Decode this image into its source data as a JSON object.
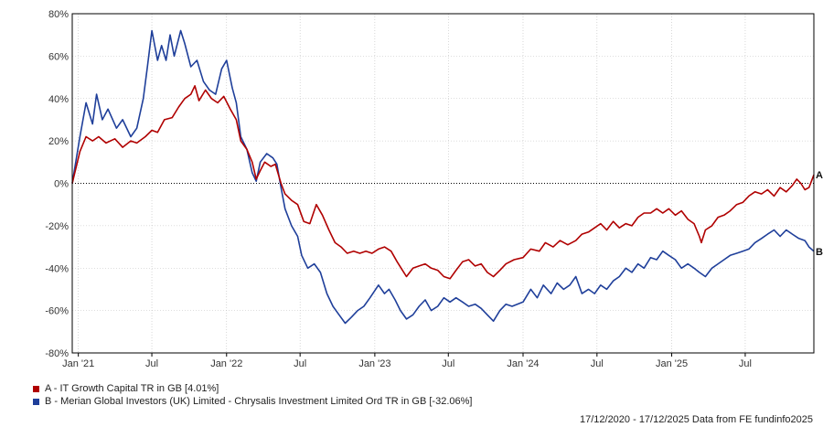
{
  "chart_data": {
    "type": "line",
    "title": "",
    "xlabel": "",
    "ylabel": "",
    "ylim": [
      -80,
      80
    ],
    "y_ticks": [
      "80%",
      "60%",
      "40%",
      "20%",
      "0%",
      "-20%",
      "-40%",
      "-60%",
      "-80%"
    ],
    "x_range": [
      "2020-12-17",
      "2025-12-17"
    ],
    "x_ticks": [
      {
        "date": "2021-01-01",
        "label": "Jan '21"
      },
      {
        "date": "2021-07-01",
        "label": "Jul"
      },
      {
        "date": "2022-01-01",
        "label": "Jan '22"
      },
      {
        "date": "2022-07-01",
        "label": "Jul"
      },
      {
        "date": "2023-01-01",
        "label": "Jan '23"
      },
      {
        "date": "2023-07-01",
        "label": "Jul"
      },
      {
        "date": "2024-01-01",
        "label": "Jan '24"
      },
      {
        "date": "2024-07-01",
        "label": "Jul"
      },
      {
        "date": "2025-01-01",
        "label": "Jan '25"
      },
      {
        "date": "2025-07-01",
        "label": "Jul"
      }
    ],
    "grid": true,
    "zero_line": true,
    "colors": {
      "A": "#b00000",
      "B": "#1f3f9a"
    },
    "series": [
      {
        "name": "A - IT Growth Capital TR in GB [4.01%]",
        "end_label": "A",
        "color": "#b00000",
        "points": [
          [
            "2020-12-17",
            0
          ],
          [
            "2021-01-05",
            15
          ],
          [
            "2021-01-20",
            22
          ],
          [
            "2021-02-05",
            20
          ],
          [
            "2021-02-20",
            22
          ],
          [
            "2021-03-10",
            19
          ],
          [
            "2021-04-01",
            21
          ],
          [
            "2021-04-20",
            17
          ],
          [
            "2021-05-10",
            20
          ],
          [
            "2021-05-25",
            19
          ],
          [
            "2021-06-15",
            22
          ],
          [
            "2021-07-01",
            25
          ],
          [
            "2021-07-15",
            24
          ],
          [
            "2021-08-01",
            30
          ],
          [
            "2021-08-20",
            31
          ],
          [
            "2021-09-05",
            36
          ],
          [
            "2021-09-20",
            40
          ],
          [
            "2021-10-05",
            42
          ],
          [
            "2021-10-15",
            46
          ],
          [
            "2021-10-25",
            39
          ],
          [
            "2021-11-10",
            44
          ],
          [
            "2021-11-25",
            40
          ],
          [
            "2021-12-10",
            38
          ],
          [
            "2021-12-25",
            41
          ],
          [
            "2022-01-10",
            35
          ],
          [
            "2022-01-25",
            30
          ],
          [
            "2022-02-05",
            20
          ],
          [
            "2022-02-20",
            16
          ],
          [
            "2022-03-05",
            10
          ],
          [
            "2022-03-15",
            2
          ],
          [
            "2022-03-25",
            6
          ],
          [
            "2022-04-05",
            10
          ],
          [
            "2022-04-20",
            8
          ],
          [
            "2022-05-01",
            9
          ],
          [
            "2022-05-15",
            0
          ],
          [
            "2022-05-25",
            -5
          ],
          [
            "2022-06-10",
            -8
          ],
          [
            "2022-06-25",
            -10
          ],
          [
            "2022-07-10",
            -18
          ],
          [
            "2022-07-25",
            -19
          ],
          [
            "2022-08-10",
            -10
          ],
          [
            "2022-08-25",
            -15
          ],
          [
            "2022-09-10",
            -22
          ],
          [
            "2022-09-25",
            -28
          ],
          [
            "2022-10-10",
            -30
          ],
          [
            "2022-10-25",
            -33
          ],
          [
            "2022-11-10",
            -32
          ],
          [
            "2022-11-25",
            -33
          ],
          [
            "2022-12-10",
            -32
          ],
          [
            "2022-12-25",
            -33
          ],
          [
            "2023-01-10",
            -31
          ],
          [
            "2023-01-25",
            -30
          ],
          [
            "2023-02-10",
            -32
          ],
          [
            "2023-02-25",
            -37
          ],
          [
            "2023-03-10",
            -41
          ],
          [
            "2023-03-20",
            -44
          ],
          [
            "2023-04-05",
            -40
          ],
          [
            "2023-04-20",
            -39
          ],
          [
            "2023-05-05",
            -38
          ],
          [
            "2023-05-20",
            -40
          ],
          [
            "2023-06-05",
            -41
          ],
          [
            "2023-06-20",
            -44
          ],
          [
            "2023-07-05",
            -45
          ],
          [
            "2023-07-20",
            -41
          ],
          [
            "2023-08-05",
            -37
          ],
          [
            "2023-08-20",
            -36
          ],
          [
            "2023-09-05",
            -39
          ],
          [
            "2023-09-20",
            -38
          ],
          [
            "2023-10-05",
            -42
          ],
          [
            "2023-10-20",
            -44
          ],
          [
            "2023-11-05",
            -41
          ],
          [
            "2023-11-20",
            -38
          ],
          [
            "2023-12-10",
            -36
          ],
          [
            "2024-01-01",
            -35
          ],
          [
            "2024-01-20",
            -31
          ],
          [
            "2024-02-10",
            -32
          ],
          [
            "2024-02-25",
            -28
          ],
          [
            "2024-03-15",
            -30
          ],
          [
            "2024-04-01",
            -27
          ],
          [
            "2024-04-20",
            -29
          ],
          [
            "2024-05-10",
            -27
          ],
          [
            "2024-05-25",
            -24
          ],
          [
            "2024-06-10",
            -23
          ],
          [
            "2024-06-25",
            -21
          ],
          [
            "2024-07-10",
            -19
          ],
          [
            "2024-07-25",
            -22
          ],
          [
            "2024-08-10",
            -18
          ],
          [
            "2024-08-25",
            -21
          ],
          [
            "2024-09-10",
            -19
          ],
          [
            "2024-09-25",
            -20
          ],
          [
            "2024-10-10",
            -16
          ],
          [
            "2024-10-25",
            -14
          ],
          [
            "2024-11-10",
            -14
          ],
          [
            "2024-11-25",
            -12
          ],
          [
            "2024-12-10",
            -14
          ],
          [
            "2024-12-25",
            -12
          ],
          [
            "2025-01-10",
            -15
          ],
          [
            "2025-01-25",
            -13
          ],
          [
            "2025-02-10",
            -17
          ],
          [
            "2025-02-25",
            -19
          ],
          [
            "2025-03-10",
            -25
          ],
          [
            "2025-03-15",
            -28
          ],
          [
            "2025-03-25",
            -22
          ],
          [
            "2025-04-10",
            -20
          ],
          [
            "2025-04-25",
            -16
          ],
          [
            "2025-05-10",
            -15
          ],
          [
            "2025-05-25",
            -13
          ],
          [
            "2025-06-10",
            -10
          ],
          [
            "2025-06-25",
            -9
          ],
          [
            "2025-07-10",
            -6
          ],
          [
            "2025-07-25",
            -4
          ],
          [
            "2025-08-10",
            -5
          ],
          [
            "2025-08-25",
            -3
          ],
          [
            "2025-09-10",
            -6
          ],
          [
            "2025-09-25",
            -2
          ],
          [
            "2025-10-10",
            -4
          ],
          [
            "2025-10-25",
            -1
          ],
          [
            "2025-11-05",
            2
          ],
          [
            "2025-11-15",
            0
          ],
          [
            "2025-11-25",
            -3
          ],
          [
            "2025-12-05",
            -2
          ],
          [
            "2025-12-17",
            4.01
          ]
        ]
      },
      {
        "name": "B - Merian Global Investors (UK) Limited - Chrysalis Investment Limited Ord TR in GB [-32.06%]",
        "end_label": "B",
        "color": "#1f3f9a",
        "points": [
          [
            "2020-12-17",
            0
          ],
          [
            "2021-01-05",
            22
          ],
          [
            "2021-01-20",
            38
          ],
          [
            "2021-02-05",
            28
          ],
          [
            "2021-02-15",
            42
          ],
          [
            "2021-03-01",
            30
          ],
          [
            "2021-03-15",
            35
          ],
          [
            "2021-04-05",
            26
          ],
          [
            "2021-04-20",
            30
          ],
          [
            "2021-05-10",
            22
          ],
          [
            "2021-05-25",
            26
          ],
          [
            "2021-06-10",
            40
          ],
          [
            "2021-06-20",
            55
          ],
          [
            "2021-07-01",
            72
          ],
          [
            "2021-07-15",
            58
          ],
          [
            "2021-07-25",
            65
          ],
          [
            "2021-08-05",
            58
          ],
          [
            "2021-08-15",
            70
          ],
          [
            "2021-08-25",
            60
          ],
          [
            "2021-09-10",
            72
          ],
          [
            "2021-09-20",
            66
          ],
          [
            "2021-10-05",
            55
          ],
          [
            "2021-10-20",
            58
          ],
          [
            "2021-11-05",
            48
          ],
          [
            "2021-11-20",
            44
          ],
          [
            "2021-12-05",
            42
          ],
          [
            "2021-12-20",
            54
          ],
          [
            "2022-01-01",
            58
          ],
          [
            "2022-01-15",
            45
          ],
          [
            "2022-01-25",
            38
          ],
          [
            "2022-02-05",
            22
          ],
          [
            "2022-02-20",
            16
          ],
          [
            "2022-03-05",
            5
          ],
          [
            "2022-03-15",
            1
          ],
          [
            "2022-03-25",
            10
          ],
          [
            "2022-04-10",
            14
          ],
          [
            "2022-04-25",
            12
          ],
          [
            "2022-05-05",
            9
          ],
          [
            "2022-05-15",
            -2
          ],
          [
            "2022-05-25",
            -12
          ],
          [
            "2022-06-10",
            -20
          ],
          [
            "2022-06-25",
            -25
          ],
          [
            "2022-07-05",
            -34
          ],
          [
            "2022-07-20",
            -40
          ],
          [
            "2022-08-05",
            -38
          ],
          [
            "2022-08-20",
            -42
          ],
          [
            "2022-09-05",
            -52
          ],
          [
            "2022-09-20",
            -58
          ],
          [
            "2022-10-05",
            -62
          ],
          [
            "2022-10-20",
            -66
          ],
          [
            "2022-11-05",
            -63
          ],
          [
            "2022-11-20",
            -60
          ],
          [
            "2022-12-05",
            -58
          ],
          [
            "2022-12-20",
            -54
          ],
          [
            "2023-01-10",
            -48
          ],
          [
            "2023-01-25",
            -52
          ],
          [
            "2023-02-05",
            -50
          ],
          [
            "2023-02-20",
            -55
          ],
          [
            "2023-03-05",
            -60
          ],
          [
            "2023-03-20",
            -64
          ],
          [
            "2023-04-05",
            -62
          ],
          [
            "2023-04-20",
            -58
          ],
          [
            "2023-05-05",
            -55
          ],
          [
            "2023-05-20",
            -60
          ],
          [
            "2023-06-05",
            -58
          ],
          [
            "2023-06-20",
            -54
          ],
          [
            "2023-07-05",
            -56
          ],
          [
            "2023-07-20",
            -54
          ],
          [
            "2023-08-05",
            -56
          ],
          [
            "2023-08-20",
            -58
          ],
          [
            "2023-09-05",
            -57
          ],
          [
            "2023-09-20",
            -59
          ],
          [
            "2023-10-05",
            -62
          ],
          [
            "2023-10-20",
            -65
          ],
          [
            "2023-11-05",
            -60
          ],
          [
            "2023-11-20",
            -57
          ],
          [
            "2023-12-05",
            -58
          ],
          [
            "2024-01-01",
            -56
          ],
          [
            "2024-01-20",
            -50
          ],
          [
            "2024-02-05",
            -54
          ],
          [
            "2024-02-20",
            -48
          ],
          [
            "2024-03-10",
            -52
          ],
          [
            "2024-03-25",
            -47
          ],
          [
            "2024-04-10",
            -50
          ],
          [
            "2024-04-25",
            -48
          ],
          [
            "2024-05-10",
            -44
          ],
          [
            "2024-05-25",
            -52
          ],
          [
            "2024-06-10",
            -50
          ],
          [
            "2024-06-25",
            -52
          ],
          [
            "2024-07-10",
            -48
          ],
          [
            "2024-07-25",
            -50
          ],
          [
            "2024-08-10",
            -46
          ],
          [
            "2024-08-25",
            -44
          ],
          [
            "2024-09-10",
            -40
          ],
          [
            "2024-09-25",
            -42
          ],
          [
            "2024-10-10",
            -38
          ],
          [
            "2024-10-25",
            -40
          ],
          [
            "2024-11-10",
            -35
          ],
          [
            "2024-11-25",
            -36
          ],
          [
            "2024-12-10",
            -32
          ],
          [
            "2024-12-25",
            -34
          ],
          [
            "2025-01-10",
            -36
          ],
          [
            "2025-01-25",
            -40
          ],
          [
            "2025-02-10",
            -38
          ],
          [
            "2025-02-25",
            -40
          ],
          [
            "2025-03-10",
            -42
          ],
          [
            "2025-03-25",
            -44
          ],
          [
            "2025-04-10",
            -40
          ],
          [
            "2025-04-25",
            -38
          ],
          [
            "2025-05-10",
            -36
          ],
          [
            "2025-05-25",
            -34
          ],
          [
            "2025-06-10",
            -33
          ],
          [
            "2025-06-25",
            -32
          ],
          [
            "2025-07-10",
            -31
          ],
          [
            "2025-07-25",
            -28
          ],
          [
            "2025-08-10",
            -26
          ],
          [
            "2025-08-25",
            -24
          ],
          [
            "2025-09-10",
            -22
          ],
          [
            "2025-09-25",
            -25
          ],
          [
            "2025-10-10",
            -22
          ],
          [
            "2025-10-25",
            -24
          ],
          [
            "2025-11-10",
            -26
          ],
          [
            "2025-11-25",
            -27
          ],
          [
            "2025-12-05",
            -30
          ],
          [
            "2025-12-17",
            -32.06
          ]
        ]
      }
    ]
  },
  "footer": {
    "text": "17/12/2020 - 17/12/2025 Data from FE fundinfo2025"
  }
}
